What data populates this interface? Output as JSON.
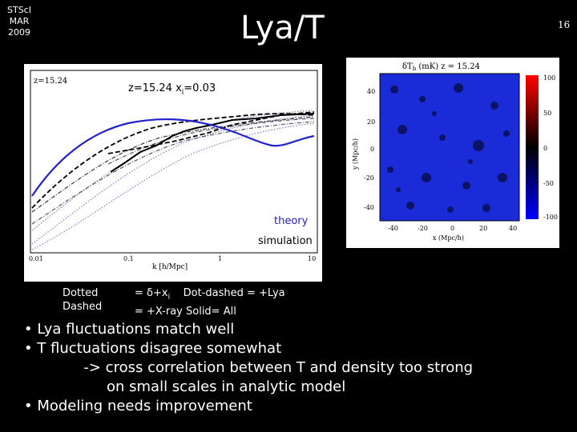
{
  "header": {
    "conference": [
      "STScI",
      "MAR",
      "2009"
    ],
    "title": "Lya/T",
    "slide_number": "16"
  },
  "left_plot": {
    "corner_label": "z=15.24",
    "annotation": "z=15.24 x",
    "annotation_sub": "i",
    "annotation_tail": "=0.03",
    "xlabel": "k [h/Mpc]",
    "xticks": [
      "0.01",
      "0.1",
      "1",
      "10"
    ],
    "label_theory": "theory",
    "label_simulation": "simulation",
    "colors": {
      "theory": "#2222cc",
      "simulation": "#000000",
      "dotted": "#8080c0"
    }
  },
  "right_plot": {
    "title": "δT",
    "title_sub": "b",
    "title_tail": " (mK)  z = 15.24",
    "xlabel": "x (Mpc/h)",
    "ylabel": "y (Mpc/h)",
    "xticks": [
      "-40",
      "-20",
      "0",
      "20",
      "40"
    ],
    "yticks": [
      "40",
      "20",
      "0",
      "-20",
      "-40"
    ],
    "colorbar_ticks": [
      "100",
      "50",
      "0",
      "-50",
      "-100"
    ],
    "colors": {
      "map": "#1a2cd8",
      "colorbar_top": "#ff0000",
      "colorbar_mid": "#000000",
      "colorbar_bottom": "#0000ff"
    }
  },
  "legend": {
    "row1_left": "Dotted",
    "row2_left": "Dashed",
    "row1_right": "= δ+x",
    "row1_right_sub": "i",
    "row1_right_tail": "    Dot-dashed = +Lya",
    "row2_right": "= +X-ray Solid= All"
  },
  "bullets": [
    "• Lya fluctuations match well",
    "• T fluctuations disagree somewhat",
    "             -> cross correlation between T and density too strong",
    "                  on small scales in analytic model",
    "• Modeling needs improvement"
  ]
}
